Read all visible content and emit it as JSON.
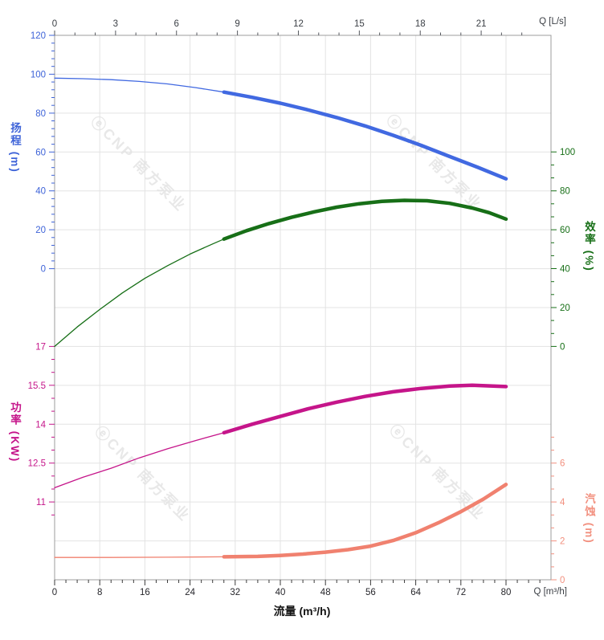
{
  "watermark": {
    "text": "ⓔCNP 南方泵业"
  },
  "corner_labels": {
    "top_right": "Q [L/s]",
    "bottom_right": "Q [m³/h]"
  },
  "xlabel": "流量 (m³/h)",
  "axis_titles": {
    "head": "扬程 (m)",
    "eff": "效率 (%)",
    "power": "功率 (KW)",
    "npsh": "汽蚀 (m)"
  },
  "chart_data": {
    "type": "line",
    "title": "",
    "x_axes": {
      "bottom": {
        "label": "Q [m³/h]",
        "unit": "m³/h",
        "ticks": [
          0,
          8,
          16,
          24,
          32,
          40,
          48,
          56,
          64,
          72,
          80
        ],
        "minor_step": 2,
        "minor_max": 86,
        "range": [
          0,
          88
        ]
      },
      "top": {
        "label": "Q [L/s]",
        "unit": "L/s",
        "ticks": [
          0,
          3,
          6,
          9,
          12,
          15,
          18,
          21
        ],
        "minor_step": 1,
        "minor_max": 23,
        "range": [
          0,
          24.4
        ]
      }
    },
    "y_axes": {
      "head": {
        "label": "扬程 (m)",
        "color": "#3E63D8",
        "curve_color": "#4169E1",
        "ticks": [
          120,
          100,
          80,
          60,
          40,
          20,
          0
        ],
        "range": [
          0,
          120
        ]
      },
      "eff": {
        "label": "效率 (%)",
        "color": "#176F17",
        "curve_color": "#176F17",
        "ticks": [
          100,
          80,
          60,
          40,
          20,
          0
        ],
        "range": [
          0,
          100
        ]
      },
      "power": {
        "label": "功率 (KW)",
        "color": "#C5158A",
        "curve_color": "#C5158A",
        "ticks": [
          17,
          15.5,
          14,
          12.5,
          11
        ],
        "range": [
          11,
          17
        ]
      },
      "npsh": {
        "label": "汽蚀 (m)",
        "color": "#F2907F",
        "curve_color": "#F0816F",
        "ticks": [
          6,
          4,
          2,
          0
        ],
        "range": [
          0,
          6
        ]
      }
    },
    "grid": true,
    "series": [
      {
        "name": "head",
        "axis": "head",
        "thick_from": 30,
        "points": [
          [
            0,
            98
          ],
          [
            5,
            97.7
          ],
          [
            10,
            97.2
          ],
          [
            15,
            96.3
          ],
          [
            20,
            95
          ],
          [
            25,
            93.1
          ],
          [
            30,
            90.8
          ],
          [
            35,
            88.1
          ],
          [
            40,
            85.1
          ],
          [
            45,
            81.6
          ],
          [
            50,
            77.7
          ],
          [
            55,
            73.4
          ],
          [
            60,
            68.6
          ],
          [
            65,
            63.4
          ],
          [
            70,
            57.7
          ],
          [
            75,
            52.1
          ],
          [
            80,
            46.2
          ]
        ]
      },
      {
        "name": "eff",
        "axis": "eff",
        "thick_from": 30,
        "points": [
          [
            0,
            0
          ],
          [
            4,
            10
          ],
          [
            8,
            19
          ],
          [
            12,
            27.5
          ],
          [
            16,
            35
          ],
          [
            20,
            41.5
          ],
          [
            24,
            47.5
          ],
          [
            28,
            52.7
          ],
          [
            30,
            55.2
          ],
          [
            34,
            59.5
          ],
          [
            38,
            63.2
          ],
          [
            42,
            66.4
          ],
          [
            46,
            69.2
          ],
          [
            50,
            71.6
          ],
          [
            54,
            73.4
          ],
          [
            58,
            74.6
          ],
          [
            62,
            75.1
          ],
          [
            66,
            74.9
          ],
          [
            70,
            73.6
          ],
          [
            74,
            71.2
          ],
          [
            77,
            68.8
          ],
          [
            80,
            65.5
          ]
        ]
      },
      {
        "name": "power",
        "axis": "power",
        "thick_from": 30,
        "points": [
          [
            0,
            11.55
          ],
          [
            5,
            11.95
          ],
          [
            10,
            12.3
          ],
          [
            15,
            12.7
          ],
          [
            20,
            13.05
          ],
          [
            25,
            13.37
          ],
          [
            30,
            13.67
          ],
          [
            35,
            14
          ],
          [
            40,
            14.3
          ],
          [
            45,
            14.6
          ],
          [
            50,
            14.85
          ],
          [
            55,
            15.07
          ],
          [
            60,
            15.25
          ],
          [
            65,
            15.38
          ],
          [
            70,
            15.47
          ],
          [
            74,
            15.5
          ],
          [
            80,
            15.45
          ]
        ]
      },
      {
        "name": "npsh",
        "axis": "npsh",
        "thick_from": 30,
        "points": [
          [
            0,
            1.15
          ],
          [
            10,
            1.15
          ],
          [
            20,
            1.16
          ],
          [
            30,
            1.18
          ],
          [
            36,
            1.2
          ],
          [
            40,
            1.25
          ],
          [
            44,
            1.32
          ],
          [
            48,
            1.42
          ],
          [
            52,
            1.55
          ],
          [
            56,
            1.73
          ],
          [
            60,
            2.02
          ],
          [
            64,
            2.42
          ],
          [
            68,
            2.93
          ],
          [
            72,
            3.5
          ],
          [
            76,
            4.15
          ],
          [
            80,
            4.9
          ]
        ]
      }
    ]
  }
}
